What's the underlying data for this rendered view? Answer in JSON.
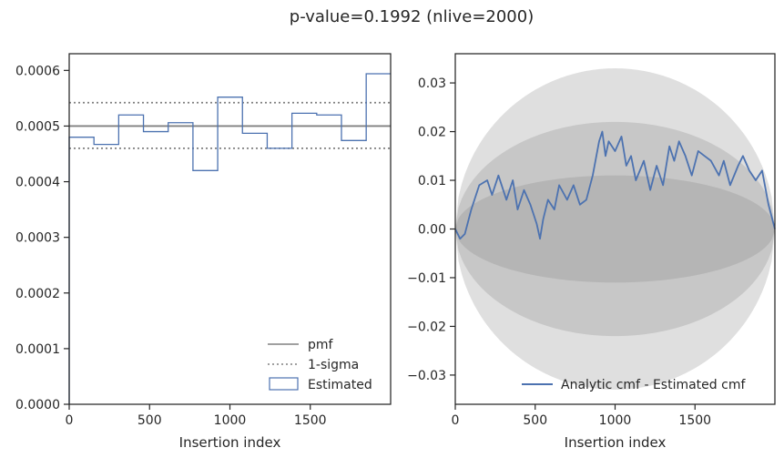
{
  "figure": {
    "title": "p-value=0.1992 (nlive=2000)"
  },
  "colors": {
    "pmf": "#808080",
    "sigma": "#808080",
    "estimated": "#4c72b0",
    "band": "#808080"
  },
  "chart_data": [
    {
      "type": "step",
      "xlabel": "Insertion index",
      "ylabel": "",
      "xlim": [
        0,
        2000
      ],
      "ylim": [
        0,
        0.00063
      ],
      "xticks": [
        0,
        500,
        1000,
        1500
      ],
      "yticks": [
        0,
        0.0001,
        0.0002,
        0.0003,
        0.0004,
        0.0005,
        0.0006
      ],
      "ytick_labels": [
        "0.0000",
        "0.0001",
        "0.0002",
        "0.0003",
        "0.0004",
        "0.0005",
        "0.0006"
      ],
      "pmf": 0.0005,
      "sigma": [
        0.00046,
        0.000542
      ],
      "bin_edges": [
        0,
        154,
        308,
        462,
        616,
        770,
        924,
        1078,
        1232,
        1386,
        1540,
        1694,
        1848,
        2000
      ],
      "estimated": [
        0.00048,
        0.000467,
        0.00052,
        0.00049,
        0.000506,
        0.00042,
        0.000552,
        0.000487,
        0.00046,
        0.000523,
        0.00052,
        0.000474,
        0.000594
      ],
      "legend": {
        "position": "lower right",
        "entries": [
          "pmf",
          "1-sigma",
          "Estimated"
        ]
      },
      "grid": false
    },
    {
      "type": "line",
      "xlabel": "Insertion index",
      "ylabel": "",
      "xlim": [
        0,
        2000
      ],
      "ylim": [
        -0.036,
        0.036
      ],
      "xticks": [
        0,
        500,
        1000,
        1500
      ],
      "yticks": [
        -0.03,
        -0.02,
        -0.01,
        0.0,
        0.01,
        0.02,
        0.03
      ],
      "ytick_labels": [
        "−0.03",
        "−0.02",
        "−0.01",
        "0.00",
        "0.01",
        "0.02",
        "0.03"
      ],
      "bands_sigma_levels": [
        1,
        2,
        3
      ],
      "bands_max_halfwidth": [
        0.011,
        0.022,
        0.033
      ],
      "series": [
        {
          "name": "Analytic cmf - Estimated cmf",
          "x": [
            0,
            30,
            60,
            100,
            150,
            200,
            230,
            270,
            320,
            360,
            390,
            430,
            470,
            510,
            530,
            550,
            580,
            620,
            650,
            700,
            740,
            780,
            820,
            860,
            900,
            920,
            940,
            960,
            1000,
            1040,
            1070,
            1100,
            1130,
            1180,
            1220,
            1260,
            1300,
            1340,
            1370,
            1400,
            1440,
            1480,
            1520,
            1560,
            1600,
            1650,
            1680,
            1720,
            1770,
            1800,
            1840,
            1880,
            1920,
            1960,
            2000
          ],
          "y": [
            0.0,
            -0.002,
            -0.001,
            0.004,
            0.009,
            0.01,
            0.007,
            0.011,
            0.006,
            0.01,
            0.004,
            0.008,
            0.005,
            0.001,
            -0.002,
            0.002,
            0.006,
            0.004,
            0.009,
            0.006,
            0.009,
            0.005,
            0.006,
            0.011,
            0.018,
            0.02,
            0.015,
            0.018,
            0.016,
            0.019,
            0.013,
            0.015,
            0.01,
            0.014,
            0.008,
            0.013,
            0.009,
            0.017,
            0.014,
            0.018,
            0.015,
            0.011,
            0.016,
            0.015,
            0.014,
            0.011,
            0.014,
            0.009,
            0.013,
            0.015,
            0.012,
            0.01,
            0.012,
            0.005,
            0.0
          ]
        }
      ],
      "legend": {
        "position": "lower right",
        "entries": [
          "Analytic cmf - Estimated cmf"
        ]
      },
      "grid": false
    }
  ]
}
